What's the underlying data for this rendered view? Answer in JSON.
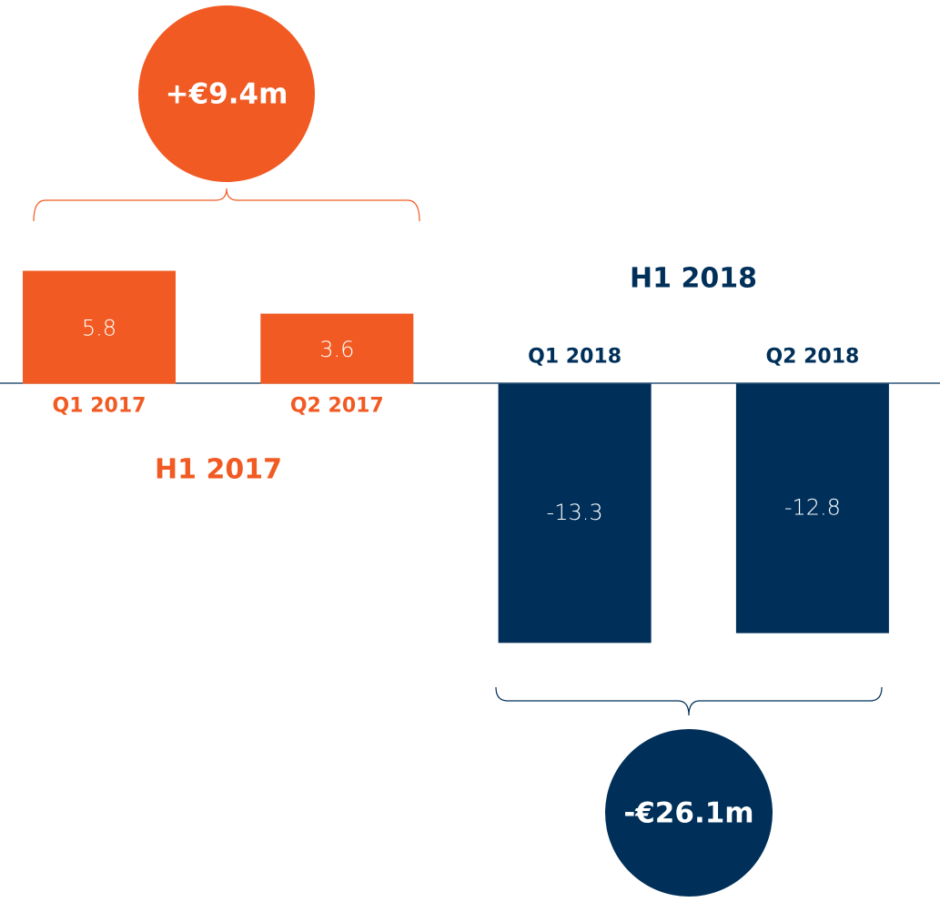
{
  "chart_data": {
    "type": "bar",
    "categories": [
      "Q1 2017",
      "Q2 2017",
      "Q1 2018",
      "Q2 2018"
    ],
    "values": [
      5.8,
      3.6,
      -13.3,
      -12.8
    ],
    "colors": [
      "#f15a22",
      "#f15a22",
      "#00305a",
      "#00305a"
    ],
    "ylim": [
      -26.6,
      19.7
    ],
    "groups": [
      {
        "name": "H1 2017",
        "annotation": "+€9.4m",
        "color": "#f15a22"
      },
      {
        "name": "H1 2018",
        "annotation": "-€26.1m",
        "color": "#00305a"
      }
    ]
  }
}
